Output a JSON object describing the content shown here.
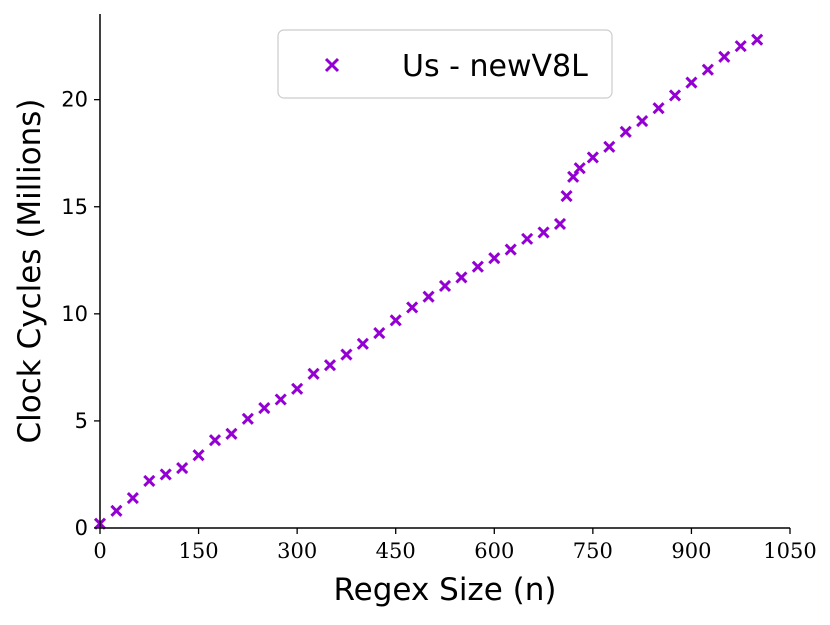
{
  "chart_data": {
    "type": "scatter",
    "title": "",
    "xlabel": "Regex Size (n)",
    "ylabel": "Clock Cycles (Millions)",
    "xlim": [
      0,
      1050
    ],
    "ylim": [
      0,
      24
    ],
    "xticks": [
      "0",
      "150",
      "300",
      "450",
      "600",
      "750",
      "900",
      "1050"
    ],
    "yticks": [
      "0",
      "5",
      "10",
      "15",
      "20"
    ],
    "grid": false,
    "legend_position": "top-center",
    "marker": "x",
    "color": "#9400d3",
    "series": [
      {
        "name": "Us - newV8L",
        "x": [
          0,
          25,
          50,
          75,
          100,
          125,
          150,
          175,
          200,
          225,
          250,
          275,
          300,
          325,
          350,
          375,
          400,
          425,
          450,
          475,
          500,
          525,
          550,
          575,
          600,
          625,
          650,
          675,
          700,
          710,
          720,
          730,
          750,
          775,
          800,
          825,
          850,
          875,
          900,
          925,
          950,
          975,
          1000
        ],
        "y": [
          0.2,
          0.8,
          1.4,
          2.2,
          2.5,
          2.8,
          3.4,
          4.1,
          4.4,
          5.1,
          5.6,
          6.0,
          6.5,
          7.2,
          7.6,
          8.1,
          8.6,
          9.1,
          9.7,
          10.3,
          10.8,
          11.3,
          11.7,
          12.2,
          12.6,
          13.0,
          13.5,
          13.8,
          14.2,
          15.5,
          16.4,
          16.8,
          17.3,
          17.8,
          18.5,
          19.0,
          19.6,
          20.2,
          20.8,
          21.4,
          22.0,
          22.5,
          22.8
        ]
      }
    ]
  }
}
